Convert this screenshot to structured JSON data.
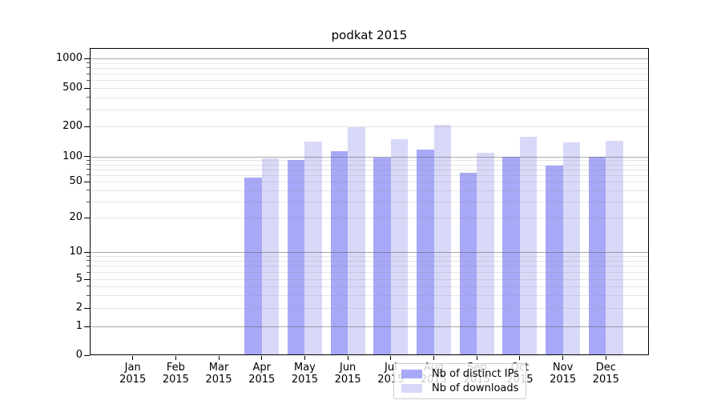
{
  "chart_data": {
    "type": "bar",
    "title": "podkat 2015",
    "categories": [
      {
        "month": "Jan",
        "year": "2015"
      },
      {
        "month": "Feb",
        "year": "2015"
      },
      {
        "month": "Mar",
        "year": "2015"
      },
      {
        "month": "Apr",
        "year": "2015"
      },
      {
        "month": "May",
        "year": "2015"
      },
      {
        "month": "Jun",
        "year": "2015"
      },
      {
        "month": "Jul",
        "year": "2015"
      },
      {
        "month": "Aug",
        "year": "2015"
      },
      {
        "month": "Sep",
        "year": "2015"
      },
      {
        "month": "Oct",
        "year": "2015"
      },
      {
        "month": "Nov",
        "year": "2015"
      },
      {
        "month": "Dec",
        "year": "2015"
      }
    ],
    "series": [
      {
        "name": "Nb of distinct IPs",
        "color": "#a8a8f8",
        "values": [
          0,
          0,
          0,
          55,
          89,
          110,
          95,
          115,
          62,
          97,
          76,
          96
        ]
      },
      {
        "name": "Nb of downloads",
        "color": "#d8d8f8",
        "values": [
          0,
          0,
          0,
          93,
          138,
          193,
          145,
          203,
          107,
          155,
          135,
          140
        ]
      }
    ],
    "y_scale": "symlog",
    "y_ticks": [
      0,
      1,
      2,
      5,
      10,
      20,
      50,
      100,
      200,
      500,
      1000
    ],
    "y_major_gridlines": [
      1,
      10,
      100,
      1000
    ],
    "y_minor_gridline_bases": [
      1,
      10,
      100
    ],
    "ylim": [
      0,
      1400
    ],
    "xlabel": "",
    "ylabel": "",
    "grid": true,
    "legend_position": "lower center"
  }
}
